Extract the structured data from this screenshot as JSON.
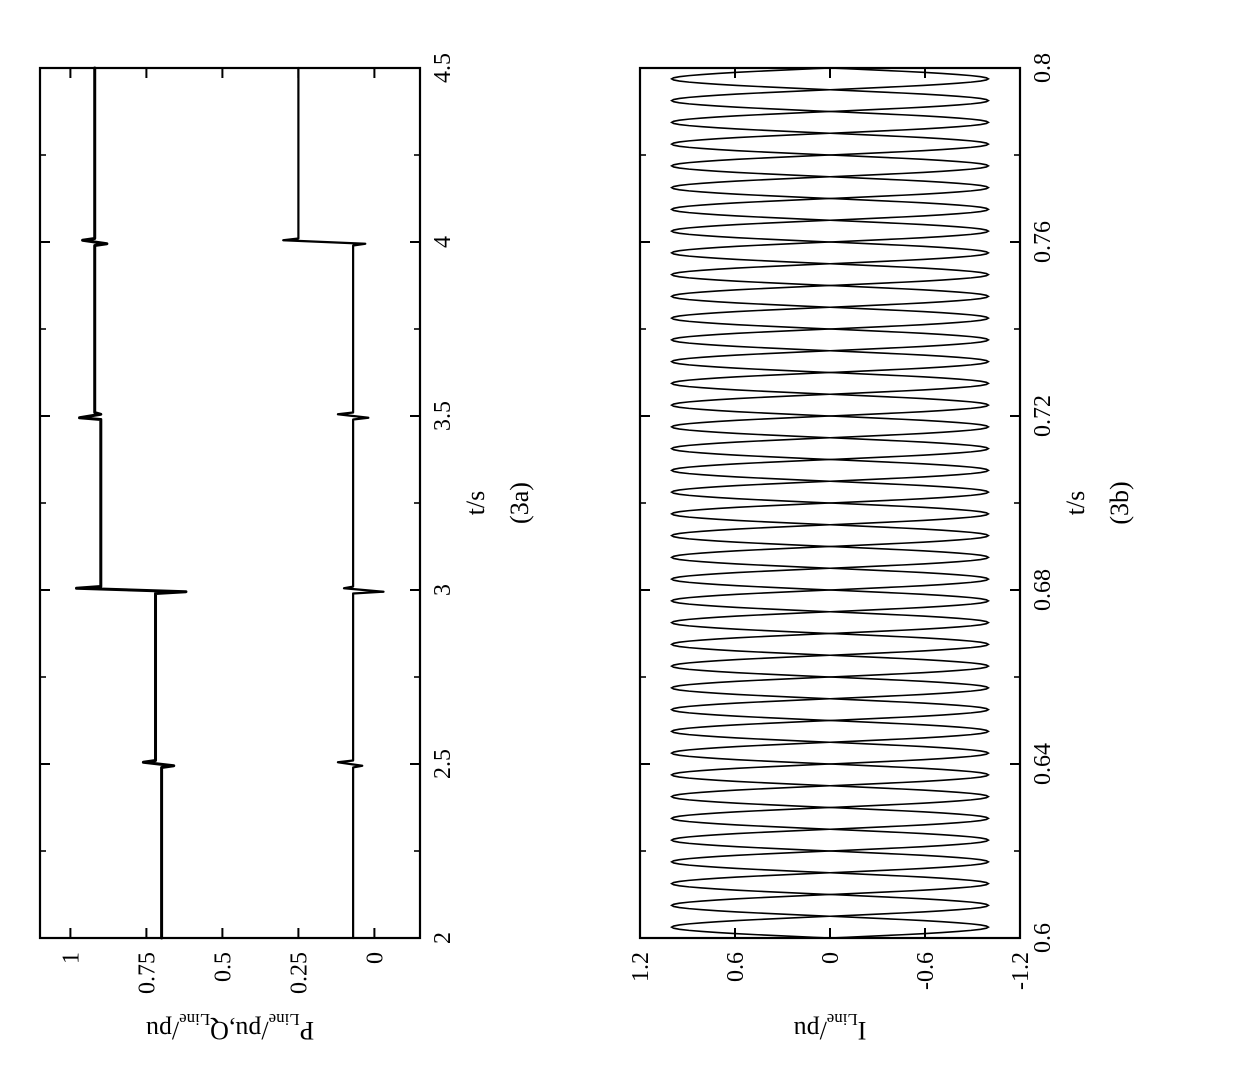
{
  "rotation_deg": -90,
  "background_color": "#ffffff",
  "line_color": "#000000",
  "axis_color": "#000000",
  "tick_length_major": 10,
  "tick_length_minor": 6,
  "axis_stroke_width": 2.2,
  "chart_a": {
    "type": "line",
    "caption": "(3a)",
    "caption_fontsize": 26,
    "xlabel": "t/s",
    "ylabel": "P_Line/pu, Q_Line/pu",
    "label_fontsize": 26,
    "tick_fontsize": 24,
    "xlim": [
      2,
      4.5
    ],
    "ylim": [
      -0.15,
      1.1
    ],
    "yticks": [
      0,
      0.25,
      0.5,
      0.75,
      1
    ],
    "xticks": [
      2,
      2.5,
      3,
      3.5,
      4,
      4.5
    ],
    "xticks_minor": [
      2.25,
      2.75,
      3.25,
      3.75,
      4.25
    ],
    "series_p": {
      "stroke_width": 3.0,
      "color": "#000000",
      "segments": [
        [
          2.0,
          0.7
        ],
        [
          2.49,
          0.7
        ],
        [
          2.495,
          0.66
        ],
        [
          2.505,
          0.76
        ],
        [
          2.51,
          0.72
        ],
        [
          2.99,
          0.72
        ],
        [
          2.995,
          0.62
        ],
        [
          3.005,
          0.98
        ],
        [
          3.01,
          0.9
        ],
        [
          3.49,
          0.9
        ],
        [
          3.495,
          0.97
        ],
        [
          3.505,
          0.9
        ],
        [
          3.51,
          0.92
        ],
        [
          3.99,
          0.92
        ],
        [
          3.995,
          0.88
        ],
        [
          4.005,
          0.96
        ],
        [
          4.01,
          0.92
        ],
        [
          4.5,
          0.92
        ]
      ]
    },
    "series_q": {
      "stroke_width": 2.2,
      "color": "#000000",
      "segments": [
        [
          2.0,
          0.07
        ],
        [
          2.49,
          0.07
        ],
        [
          2.495,
          0.04
        ],
        [
          2.505,
          0.12
        ],
        [
          2.51,
          0.07
        ],
        [
          2.99,
          0.07
        ],
        [
          2.995,
          -0.03
        ],
        [
          3.005,
          0.1
        ],
        [
          3.01,
          0.07
        ],
        [
          3.49,
          0.07
        ],
        [
          3.495,
          0.02
        ],
        [
          3.505,
          0.12
        ],
        [
          3.51,
          0.07
        ],
        [
          3.99,
          0.07
        ],
        [
          3.995,
          0.03
        ],
        [
          4.005,
          0.3
        ],
        [
          4.01,
          0.25
        ],
        [
          4.5,
          0.25
        ]
      ]
    }
  },
  "chart_b": {
    "type": "line",
    "caption": "(3b)",
    "caption_fontsize": 26,
    "xlabel": "t/s",
    "ylabel": "I_Line/pu",
    "label_fontsize": 26,
    "tick_fontsize": 24,
    "xlim": [
      0.6,
      0.8
    ],
    "ylim": [
      -1.2,
      1.2
    ],
    "yticks": [
      -1.2,
      -0.6,
      0,
      0.6,
      1.2
    ],
    "xticks": [
      0.6,
      0.64,
      0.68,
      0.72,
      0.76,
      0.8
    ],
    "xticks_minor": [
      0.62,
      0.66,
      0.7,
      0.74,
      0.78
    ],
    "sine_amplitude": 1.0,
    "sine_frequency_hz": 100,
    "sine_phase_deg_a": 0,
    "sine_phase_deg_b": 180,
    "stroke_width": 1.6,
    "color": "#000000"
  }
}
